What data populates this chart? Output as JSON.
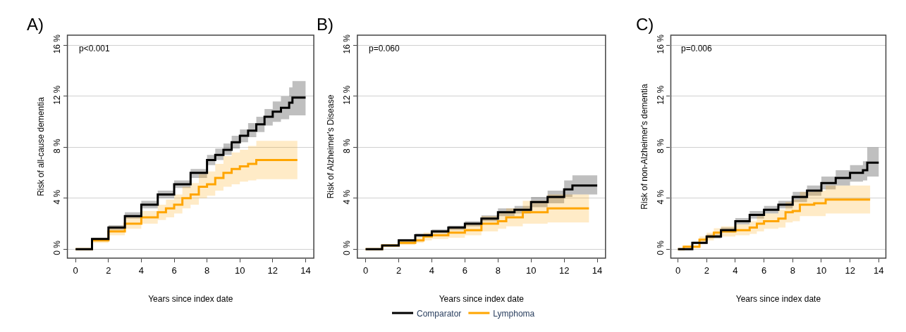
{
  "chart_data": [
    {
      "type": "step",
      "title": "A)",
      "xlabel": "Years since index date",
      "ylabel": "Risk of all-cause dementia",
      "annotations": [
        "p<0.001"
      ],
      "xlim": [
        -0.5,
        14.5
      ],
      "xticks": [
        0,
        2,
        4,
        6,
        8,
        10,
        12,
        14
      ],
      "ylim": [
        -0.7,
        16.8
      ],
      "yticks": [
        {
          "value": 0,
          "label": "0 %"
        },
        {
          "value": 4,
          "label": "4 %"
        },
        {
          "value": 8,
          "label": "8 %"
        },
        {
          "value": 12,
          "label": "12 %"
        },
        {
          "value": 16,
          "label": "16 %"
        }
      ],
      "grid": "y",
      "series": [
        {
          "color": "#000000",
          "x": [
            0,
            1,
            2,
            3,
            4,
            5,
            6,
            7,
            8,
            8.5,
            9,
            9.5,
            10,
            10.5,
            11,
            11.5,
            12,
            12.5,
            13,
            13.2,
            14
          ],
          "values": [
            0,
            0.8,
            1.7,
            2.6,
            3.5,
            4.3,
            5.1,
            6.0,
            7.0,
            7.4,
            7.8,
            8.4,
            8.9,
            9.3,
            9.8,
            10.4,
            10.8,
            11.1,
            11.5,
            11.9,
            11.9
          ],
          "lower": [
            0,
            0.7,
            1.5,
            2.4,
            3.2,
            4.0,
            4.8,
            5.6,
            6.6,
            7.0,
            7.4,
            7.9,
            8.4,
            8.8,
            9.2,
            9.7,
            10.0,
            10.2,
            10.5,
            10.5,
            10.5
          ],
          "upper": [
            0,
            0.9,
            1.9,
            2.9,
            3.8,
            4.6,
            5.4,
            6.3,
            7.4,
            7.9,
            8.3,
            8.9,
            9.4,
            9.9,
            10.4,
            11.0,
            11.6,
            12.0,
            12.7,
            13.2,
            13.2
          ]
        },
        {
          "color": "#ffa500",
          "x": [
            0,
            1,
            2,
            3,
            4,
            5,
            5.5,
            6,
            6.5,
            7,
            7.5,
            8,
            8.5,
            9,
            9.5,
            10,
            10.5,
            11,
            13.5
          ],
          "values": [
            0,
            0.7,
            1.4,
            2.0,
            2.5,
            2.9,
            3.2,
            3.5,
            4.0,
            4.3,
            4.9,
            5.1,
            5.6,
            6.0,
            6.3,
            6.5,
            6.7,
            7.0,
            7.0
          ],
          "lower": [
            0,
            0.5,
            1.1,
            1.6,
            2.0,
            2.3,
            2.5,
            2.8,
            3.2,
            3.5,
            4.0,
            4.2,
            4.6,
            4.9,
            5.1,
            5.3,
            5.4,
            5.5,
            5.5
          ],
          "upper": [
            0,
            0.9,
            1.8,
            2.5,
            3.0,
            3.5,
            3.9,
            4.3,
            4.9,
            5.2,
            5.9,
            6.1,
            6.7,
            7.3,
            7.6,
            7.8,
            8.1,
            8.5,
            8.5
          ]
        }
      ]
    },
    {
      "type": "step",
      "title": "B)",
      "xlabel": "Years since index date",
      "ylabel": "Risk of Alzheimer's Disease",
      "annotations": [
        "p=0.060"
      ],
      "xlim": [
        -0.5,
        14.5
      ],
      "xticks": [
        0,
        2,
        4,
        6,
        8,
        10,
        12,
        14
      ],
      "ylim": [
        -0.7,
        16.8
      ],
      "yticks": [
        {
          "value": 0,
          "label": "0 %"
        },
        {
          "value": 4,
          "label": "4 %"
        },
        {
          "value": 8,
          "label": "8 %"
        },
        {
          "value": 12,
          "label": "12 %"
        },
        {
          "value": 16,
          "label": "16 %"
        }
      ],
      "grid": "y",
      "legend": "bottom",
      "series": [
        {
          "name": "Comparator",
          "color": "#000000",
          "x": [
            0,
            1,
            2,
            3,
            4,
            5,
            6,
            7,
            8,
            9,
            10,
            11,
            12,
            12.5,
            14
          ],
          "values": [
            0,
            0.3,
            0.7,
            1.1,
            1.4,
            1.7,
            2.0,
            2.4,
            2.9,
            3.1,
            3.7,
            4.1,
            4.7,
            5.0,
            5.0
          ],
          "lower": [
            0,
            0.25,
            0.6,
            0.95,
            1.25,
            1.5,
            1.8,
            2.2,
            2.6,
            2.8,
            3.3,
            3.6,
            4.1,
            4.3,
            4.3
          ],
          "upper": [
            0,
            0.35,
            0.8,
            1.25,
            1.55,
            1.85,
            2.2,
            2.65,
            3.2,
            3.4,
            4.1,
            4.6,
            5.4,
            5.8,
            5.8
          ]
        },
        {
          "name": "Lymphoma",
          "color": "#ffa500",
          "x": [
            0,
            1,
            2,
            3,
            3.5,
            4,
            5,
            6,
            7,
            8,
            8.5,
            9.5,
            11,
            13.5
          ],
          "values": [
            0,
            0.3,
            0.5,
            0.7,
            1.0,
            1.1,
            1.3,
            1.5,
            2.0,
            2.2,
            2.5,
            2.9,
            3.2,
            3.2
          ],
          "lower": [
            0,
            0.2,
            0.35,
            0.5,
            0.7,
            0.8,
            0.9,
            1.1,
            1.4,
            1.6,
            1.8,
            2.0,
            2.1,
            2.1
          ],
          "upper": [
            0,
            0.4,
            0.65,
            0.95,
            1.3,
            1.45,
            1.7,
            2.0,
            2.6,
            2.9,
            3.2,
            3.8,
            4.3,
            4.3
          ]
        }
      ]
    },
    {
      "type": "step",
      "title": "C)",
      "xlabel": "Years since index date",
      "ylabel": "Risk of non-Alzheimer's dementia",
      "annotations": [
        "p=0.006"
      ],
      "xlim": [
        -0.5,
        14.5
      ],
      "xticks": [
        0,
        2,
        4,
        6,
        8,
        10,
        12,
        14
      ],
      "ylim": [
        -0.7,
        16.8
      ],
      "yticks": [
        {
          "value": 0,
          "label": "0 %"
        },
        {
          "value": 4,
          "label": "4 %"
        },
        {
          "value": 8,
          "label": "8 %"
        },
        {
          "value": 12,
          "label": "12 %"
        },
        {
          "value": 16,
          "label": "16 %"
        }
      ],
      "grid": "y",
      "series": [
        {
          "color": "#000000",
          "x": [
            0,
            1,
            2,
            3,
            4,
            5,
            6,
            7,
            8,
            9,
            10,
            11,
            12,
            12.9,
            13.2,
            14
          ],
          "values": [
            0,
            0.5,
            1.0,
            1.5,
            2.2,
            2.7,
            3.1,
            3.5,
            4.1,
            4.6,
            5.2,
            5.6,
            6.0,
            6.2,
            6.8,
            6.8
          ],
          "lower": [
            0,
            0.4,
            0.85,
            1.3,
            1.95,
            2.4,
            2.8,
            3.2,
            3.7,
            4.2,
            4.7,
            5.0,
            5.3,
            5.4,
            5.7,
            5.7
          ],
          "upper": [
            0,
            0.6,
            1.15,
            1.7,
            2.45,
            3.0,
            3.4,
            3.8,
            4.5,
            5.0,
            5.7,
            6.2,
            6.6,
            6.9,
            8.0,
            8.0
          ]
        },
        {
          "color": "#ffa500",
          "x": [
            0,
            0.4,
            1.5,
            2,
            2.5,
            3,
            4,
            5,
            5.5,
            6,
            7,
            7.5,
            8,
            8.5,
            9.5,
            10.3,
            13.4
          ],
          "values": [
            0,
            0.2,
            0.75,
            1.0,
            1.3,
            1.4,
            1.5,
            1.7,
            2.0,
            2.2,
            2.4,
            2.9,
            3.0,
            3.5,
            3.6,
            3.9,
            3.9
          ],
          "lower": [
            0,
            0.1,
            0.5,
            0.7,
            0.95,
            1.0,
            1.1,
            1.2,
            1.4,
            1.6,
            1.7,
            2.1,
            2.2,
            2.6,
            2.6,
            2.8,
            2.8
          ],
          "upper": [
            0,
            0.3,
            1.0,
            1.3,
            1.65,
            1.8,
            1.95,
            2.2,
            2.6,
            2.8,
            3.1,
            3.7,
            3.9,
            4.5,
            4.6,
            5.0,
            5.0
          ]
        }
      ]
    }
  ]
}
